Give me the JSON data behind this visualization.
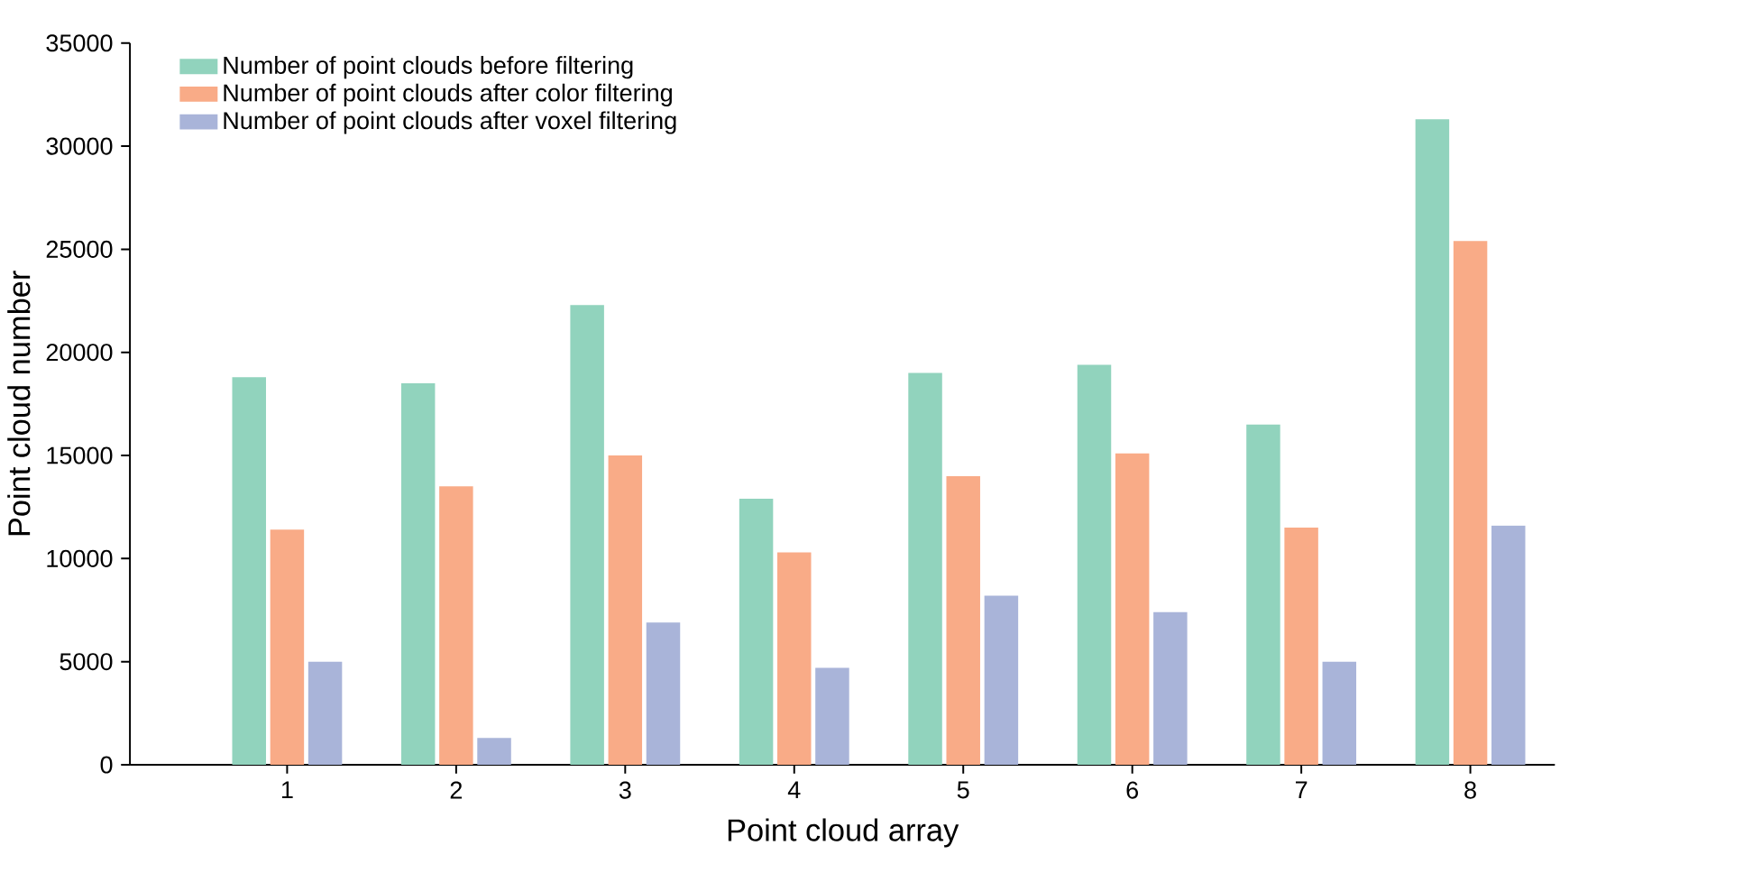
{
  "chart_data": {
    "type": "bar",
    "xlabel": "Point cloud array",
    "ylabel": "Point cloud number",
    "categories": [
      "1",
      "2",
      "3",
      "4",
      "5",
      "6",
      "7",
      "8"
    ],
    "series": [
      {
        "name": "Number of point clouds before filtering",
        "color": "#91d3bd",
        "values": [
          18800,
          18500,
          22300,
          12900,
          19000,
          19400,
          16500,
          31300
        ]
      },
      {
        "name": "Number of point clouds after color filtering",
        "color": "#f9ab87",
        "values": [
          11400,
          13500,
          15000,
          10300,
          14000,
          15100,
          11500,
          25400
        ]
      },
      {
        "name": "Number of point clouds after voxel filtering",
        "color": "#a9b4d9",
        "values": [
          5000,
          1300,
          6900,
          4700,
          8200,
          7400,
          5000,
          11600
        ]
      }
    ],
    "ylim": [
      0,
      35000
    ],
    "yticks": [
      0,
      5000,
      10000,
      15000,
      20000,
      25000,
      30000,
      35000
    ],
    "legend": "top left",
    "grid": false
  }
}
